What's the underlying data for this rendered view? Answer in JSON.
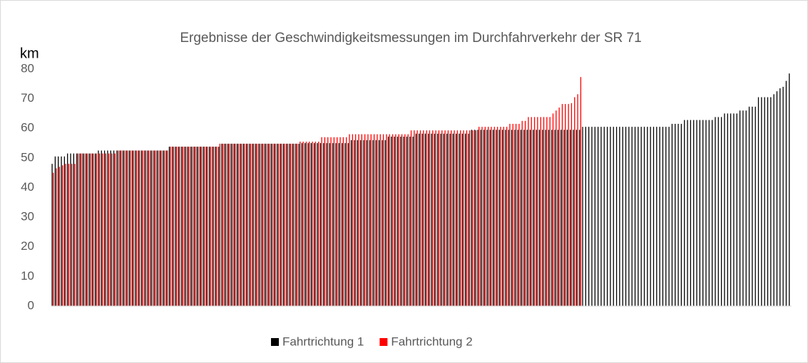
{
  "chart_data": {
    "type": "bar",
    "title": "Ergebnisse der Geschwindigkeitsmessungen im Durchfahrverkehr der SR 71",
    "y_label": "km",
    "categories": [
      null,
      null,
      null,
      null,
      null,
      null,
      null,
      null,
      null,
      null,
      null,
      null,
      null,
      null,
      null,
      null,
      null,
      null,
      null,
      null,
      null,
      null,
      null,
      null,
      null,
      null,
      null,
      null,
      null,
      null,
      null,
      null,
      null,
      null,
      null,
      null,
      null,
      null,
      null,
      null,
      null,
      null,
      null,
      null,
      null,
      null,
      null,
      null,
      null,
      null,
      null,
      null,
      null,
      null,
      null,
      null,
      null,
      null,
      null,
      null,
      null,
      null,
      null,
      null,
      null,
      null,
      null,
      null,
      null,
      null,
      null,
      null,
      null,
      null,
      null,
      null,
      null,
      null,
      null,
      null,
      null,
      null,
      null,
      null,
      null,
      null,
      null,
      null,
      null,
      null,
      null,
      null,
      null,
      null,
      null,
      null,
      null,
      null,
      null,
      null,
      null,
      null,
      null,
      null,
      null,
      null,
      null,
      null,
      null,
      null,
      null,
      null,
      null,
      null,
      null,
      null,
      null,
      null,
      null,
      null,
      null,
      null,
      null,
      null,
      null,
      null,
      null,
      null,
      null,
      null,
      null,
      null,
      null,
      null,
      null,
      null,
      null,
      null,
      null,
      null,
      null,
      null,
      null,
      null,
      null,
      null,
      null,
      null,
      null,
      null,
      null,
      null,
      null,
      null,
      null,
      null,
      null,
      null,
      null,
      null,
      null,
      null,
      null,
      null,
      null,
      null,
      null,
      null,
      null,
      null,
      null,
      null,
      null,
      null,
      null,
      null,
      null,
      null,
      null,
      null,
      null,
      null,
      null,
      null,
      null,
      null,
      null,
      null,
      null,
      null,
      null,
      null,
      null,
      null,
      null,
      null,
      null,
      null,
      null,
      null,
      null,
      null,
      null,
      null,
      null,
      null,
      null,
      null,
      null,
      null,
      null,
      null,
      null,
      null,
      null,
      null,
      null,
      null,
      null,
      null,
      null,
      null,
      null,
      null,
      null,
      null,
      null,
      null,
      null,
      null,
      null,
      null,
      null,
      null,
      null,
      null,
      null,
      null,
      null,
      null
    ],
    "series": [
      {
        "name": "Fahrtrichtung 1",
        "color": "#000000",
        "values": [
          48,
          50.5,
          50.5,
          50.5,
          50.5,
          51.5,
          51.5,
          51.5,
          51.5,
          51.5,
          51.5,
          51.5,
          51.5,
          51.5,
          51.5,
          52.5,
          52.5,
          52.5,
          52.5,
          52.5,
          52.5,
          52.5,
          52.5,
          52.5,
          52.5,
          52.5,
          52.5,
          52.5,
          52.5,
          52.5,
          52.5,
          52.5,
          52.5,
          52.5,
          52.5,
          52.5,
          52.5,
          52.5,
          53.8,
          53.8,
          53.8,
          53.8,
          53.8,
          53.8,
          53.8,
          53.8,
          53.8,
          53.8,
          53.8,
          53.8,
          53.8,
          53.8,
          53.8,
          53.8,
          53.8,
          54.8,
          54.8,
          54.8,
          54.8,
          54.8,
          54.8,
          54.8,
          54.8,
          54.8,
          54.8,
          54.8,
          54.8,
          54.8,
          54.8,
          54.8,
          54.8,
          54.8,
          54.8,
          54.8,
          54.8,
          54.8,
          54.8,
          54.8,
          54.8,
          54.8,
          54.8,
          55,
          55,
          55,
          55,
          55,
          55,
          55,
          55,
          55,
          55,
          55,
          55,
          55,
          55,
          55,
          55,
          56,
          56,
          56,
          56,
          56,
          56,
          56,
          56,
          56,
          56,
          56,
          56,
          57.2,
          57.2,
          57.2,
          57.2,
          57.2,
          57.2,
          57.2,
          57.2,
          57.2,
          58.2,
          58.2,
          58.2,
          58.2,
          58.2,
          58.2,
          58.2,
          58.2,
          58.2,
          58.2,
          58.2,
          58.2,
          58.2,
          58.2,
          58.2,
          58.2,
          58.2,
          58.2,
          59.5,
          59.5,
          59.5,
          59.5,
          59.5,
          59.5,
          59.5,
          59.5,
          59.5,
          59.5,
          59.5,
          59.5,
          59.5,
          59.5,
          59.5,
          59.5,
          59.5,
          59.5,
          59.5,
          59.5,
          59.5,
          59.5,
          59.5,
          59.5,
          59.5,
          59.5,
          59.5,
          59.5,
          59.5,
          59.5,
          59.5,
          59.5,
          59.5,
          59.5,
          59.5,
          59.5,
          60.5,
          60.5,
          60.5,
          60.5,
          60.5,
          60.5,
          60.5,
          60.5,
          60.5,
          60.5,
          60.5,
          60.5,
          60.5,
          60.5,
          60.5,
          60.5,
          60.5,
          60.5,
          60.5,
          60.5,
          60.5,
          60.5,
          60.5,
          60.5,
          60.5,
          60.5,
          60.5,
          60.5,
          60.5,
          61.5,
          61.5,
          61.5,
          61.5,
          62.8,
          62.8,
          62.8,
          62.8,
          62.8,
          62.8,
          62.8,
          62.8,
          62.8,
          62.8,
          63.8,
          63.8,
          63.8,
          65,
          65,
          65,
          65,
          65,
          66,
          66,
          66,
          67.3,
          67.3,
          67.3,
          70.5,
          70.5,
          70.5,
          70.5,
          70.5,
          71.5,
          72.5,
          73.5,
          74,
          76,
          78.5
        ]
      },
      {
        "name": "Fahrtrichtung 2",
        "color": "#ff0000",
        "values": [
          45,
          46.5,
          47,
          47.5,
          48,
          48,
          48,
          48,
          51.5,
          51.5,
          51.5,
          51.5,
          51.5,
          51.5,
          51.5,
          51.5,
          51.5,
          51.5,
          51.5,
          51.5,
          51.5,
          52.5,
          52.5,
          52.5,
          52.5,
          52.5,
          52.5,
          52.5,
          52.5,
          52.5,
          52.5,
          52.5,
          52.5,
          52.5,
          52.5,
          52.5,
          52.5,
          52.5,
          53.8,
          53.8,
          53.8,
          53.8,
          53.8,
          53.8,
          53.8,
          53.8,
          53.8,
          53.8,
          53.8,
          53.8,
          53.8,
          53.8,
          53.8,
          53.8,
          54.8,
          54.8,
          54.8,
          54.8,
          54.8,
          54.8,
          54.8,
          54.8,
          54.8,
          54.8,
          54.8,
          54.8,
          54.8,
          54.8,
          54.8,
          54.8,
          54.8,
          54.8,
          54.8,
          54.8,
          54.8,
          54.8,
          54.8,
          54.8,
          54.8,
          54.8,
          55.5,
          55.5,
          55.5,
          55.5,
          55.5,
          55.5,
          55.5,
          57,
          57,
          57,
          57,
          57,
          57,
          57,
          57,
          57,
          58,
          58,
          58,
          58,
          58,
          58,
          58,
          58,
          58,
          58,
          58,
          58,
          58,
          58,
          58,
          58,
          58,
          58,
          58,
          58,
          59.3,
          59.3,
          59.3,
          59.3,
          59.3,
          59.3,
          59.3,
          59.3,
          59.3,
          59.3,
          59.3,
          59.3,
          59.3,
          59.3,
          59.3,
          59.3,
          59.3,
          59.3,
          59.3,
          59.3,
          59.3,
          59.3,
          60.5,
          60.5,
          60.5,
          60.5,
          60.5,
          60.5,
          60.5,
          60.5,
          60.5,
          60.5,
          61.5,
          61.5,
          61.5,
          61.5,
          62.5,
          62.5,
          63.8,
          63.8,
          63.8,
          63.8,
          63.8,
          63.8,
          63.8,
          63.8,
          65,
          66,
          67,
          68.2,
          68.2,
          68.2,
          68.5,
          70.5,
          71.5,
          77.3,
          null,
          null,
          null,
          null,
          null,
          null,
          null,
          null,
          null,
          null,
          null,
          null,
          null,
          null,
          null,
          null,
          null,
          null,
          null,
          null,
          null,
          null,
          null,
          null,
          null,
          null,
          null,
          null,
          null,
          null,
          null,
          null,
          null,
          null,
          null,
          null,
          null,
          null,
          null,
          null,
          null,
          null,
          null,
          null,
          null,
          null,
          null,
          null,
          null,
          null,
          null,
          null,
          null,
          null,
          null,
          null,
          null,
          null,
          null,
          null,
          null,
          null,
          null,
          null,
          null,
          null,
          null,
          null
        ]
      }
    ],
    "ylim": [
      0,
      80
    ],
    "yticks": [
      0,
      10,
      20,
      30,
      40,
      50,
      60,
      70,
      80
    ],
    "grid": false,
    "legend": "bottom"
  }
}
